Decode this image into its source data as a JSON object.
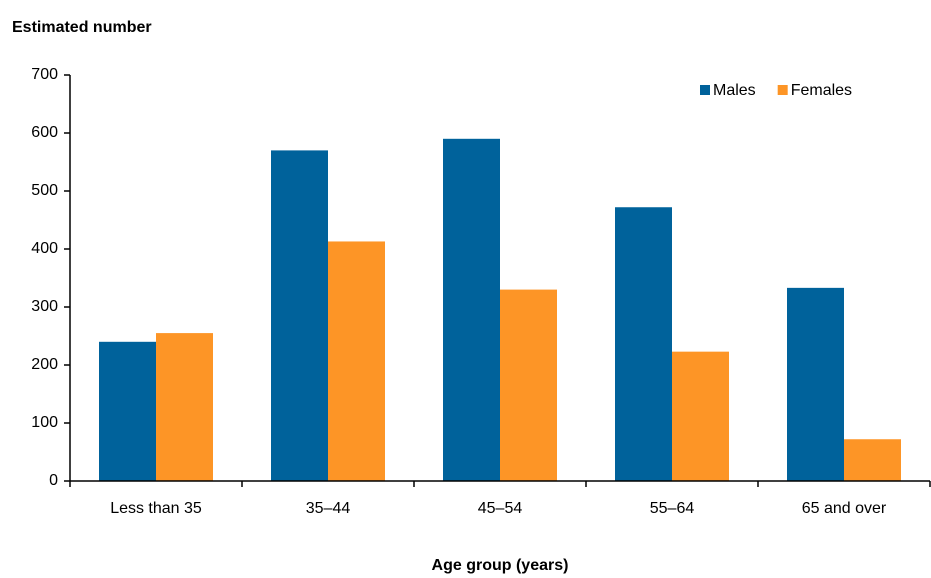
{
  "chart_data": {
    "type": "bar",
    "y_axis_title": "Estimated number",
    "x_axis_title": "Age group (years)",
    "categories": [
      "Less than 35",
      "35–44",
      "45–54",
      "55–64",
      "65 and over"
    ],
    "series": [
      {
        "name": "Males",
        "color": "#00629b",
        "values": [
          240,
          570,
          590,
          472,
          333
        ]
      },
      {
        "name": "Females",
        "color": "#fd9526",
        "values": [
          255,
          413,
          330,
          223,
          72
        ]
      }
    ],
    "ylim": [
      0,
      700
    ],
    "yticks": [
      0,
      100,
      200,
      300,
      400,
      500,
      600,
      700
    ],
    "grid": false,
    "legend": "top-right"
  }
}
